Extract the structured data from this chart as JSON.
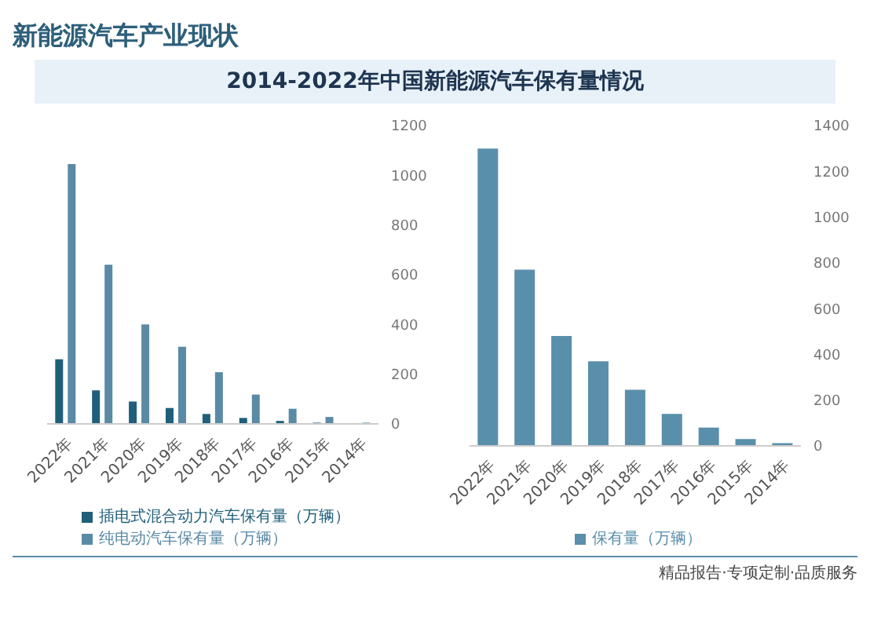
{
  "chart_data": [
    {
      "type": "bar",
      "title": "2014-2022年中国新能源汽车保有量情况",
      "categories": [
        "2022年",
        "2021年",
        "2020年",
        "2019年",
        "2018年",
        "2017年",
        "2016年",
        "2015年",
        "2014年"
      ],
      "series": [
        {
          "name": "插电式混合动力汽车保有量（万辆）",
          "color": "#1f5f7a",
          "values": [
            260,
            135,
            90,
            64,
            40,
            24,
            12,
            5,
            null
          ]
        },
        {
          "name": "纯电动汽车保有量（万辆）",
          "color": "#5a8aa6",
          "values": [
            1045,
            640,
            400,
            310,
            208,
            118,
            61,
            28,
            5
          ]
        }
      ],
      "ylim": [
        0,
        1200
      ],
      "yticks": [
        0,
        200,
        400,
        600,
        800,
        1000,
        1200
      ],
      "grid": false,
      "legend": "bottom"
    },
    {
      "type": "bar",
      "categories": [
        "2022年",
        "2021年",
        "2020年",
        "2019年",
        "2018年",
        "2017年",
        "2016年",
        "2015年",
        "2014年"
      ],
      "series": [
        {
          "name": "保有量（万辆）",
          "color": "#5a8fab",
          "values": [
            1300,
            770,
            480,
            370,
            245,
            140,
            80,
            30,
            12
          ]
        }
      ],
      "ylim": [
        0,
        1400
      ],
      "yticks": [
        0,
        200,
        400,
        600,
        800,
        1000,
        1200,
        1400
      ],
      "grid": false,
      "legend": "bottom",
      "annotations": [
        "新能源汽车产业现状",
        "精品报告·专项定制·品质服务"
      ]
    }
  ]
}
